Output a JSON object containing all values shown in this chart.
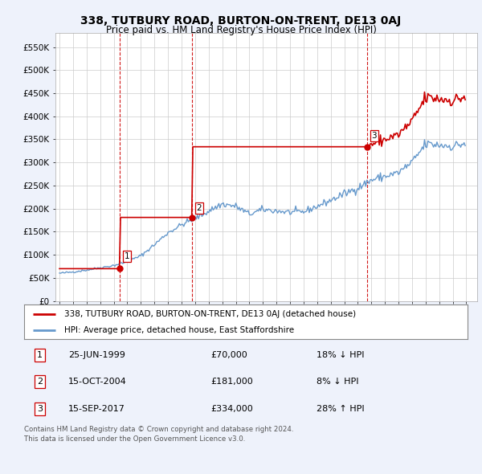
{
  "title": "338, TUTBURY ROAD, BURTON-ON-TRENT, DE13 0AJ",
  "subtitle": "Price paid vs. HM Land Registry's House Price Index (HPI)",
  "ylim": [
    0,
    580000
  ],
  "yticks": [
    0,
    50000,
    100000,
    150000,
    200000,
    250000,
    300000,
    350000,
    400000,
    450000,
    500000,
    550000
  ],
  "ytick_labels": [
    "£0",
    "£50K",
    "£100K",
    "£150K",
    "£200K",
    "£250K",
    "£300K",
    "£350K",
    "£400K",
    "£450K",
    "£500K",
    "£550K"
  ],
  "sale_date_nums": [
    1999.458,
    2004.792,
    2017.708
  ],
  "sale_prices": [
    70000,
    181000,
    334000
  ],
  "sale_labels": [
    "1",
    "2",
    "3"
  ],
  "hpi_key_points": [
    [
      1995,
      1,
      60000
    ],
    [
      1996,
      1,
      63000
    ],
    [
      1997,
      1,
      67000
    ],
    [
      1998,
      1,
      72000
    ],
    [
      1999,
      1,
      77000
    ],
    [
      2000,
      1,
      85000
    ],
    [
      2001,
      1,
      98000
    ],
    [
      2002,
      1,
      122000
    ],
    [
      2003,
      1,
      148000
    ],
    [
      2004,
      1,
      165000
    ],
    [
      2005,
      6,
      185000
    ],
    [
      2006,
      1,
      195000
    ],
    [
      2007,
      1,
      210000
    ],
    [
      2008,
      1,
      205000
    ],
    [
      2009,
      1,
      188000
    ],
    [
      2010,
      1,
      198000
    ],
    [
      2011,
      1,
      195000
    ],
    [
      2012,
      1,
      192000
    ],
    [
      2013,
      1,
      193000
    ],
    [
      2014,
      1,
      205000
    ],
    [
      2015,
      1,
      218000
    ],
    [
      2016,
      1,
      232000
    ],
    [
      2017,
      1,
      245000
    ],
    [
      2018,
      1,
      262000
    ],
    [
      2019,
      1,
      270000
    ],
    [
      2020,
      1,
      278000
    ],
    [
      2021,
      1,
      300000
    ],
    [
      2022,
      1,
      340000
    ],
    [
      2023,
      1,
      338000
    ],
    [
      2024,
      1,
      335000
    ],
    [
      2025,
      1,
      342000
    ]
  ],
  "legend_property": "338, TUTBURY ROAD, BURTON-ON-TRENT, DE13 0AJ (detached house)",
  "legend_hpi": "HPI: Average price, detached house, East Staffordshire",
  "table_rows": [
    {
      "num": "1",
      "date": "25-JUN-1999",
      "price": "£70,000",
      "change": "18% ↓ HPI"
    },
    {
      "num": "2",
      "date": "15-OCT-2004",
      "price": "£181,000",
      "change": "8% ↓ HPI"
    },
    {
      "num": "3",
      "date": "15-SEP-2017",
      "price": "£334,000",
      "change": "28% ↑ HPI"
    }
  ],
  "footer": "Contains HM Land Registry data © Crown copyright and database right 2024.\nThis data is licensed under the Open Government Licence v3.0.",
  "property_color": "#cc0000",
  "hpi_color": "#6699cc",
  "vline_color": "#cc0000",
  "background_color": "#eef2fb",
  "plot_bg_color": "#ffffff",
  "xlim_left": 1994.7,
  "xlim_right": 2025.8
}
